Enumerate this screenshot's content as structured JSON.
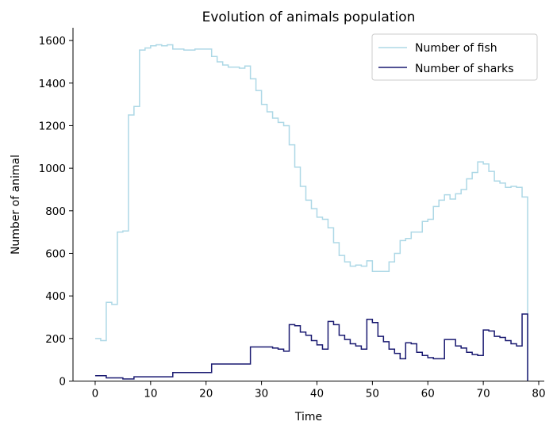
{
  "chart_data": {
    "type": "line",
    "drawstyle": "steps-post",
    "title": "Evolution of animals population",
    "xlabel": "Time",
    "ylabel": "Number of animal",
    "xlim": [
      -4,
      81
    ],
    "ylim": [
      0,
      1660
    ],
    "xticks": [
      0,
      10,
      20,
      30,
      40,
      50,
      60,
      70,
      80
    ],
    "yticks": [
      0,
      200,
      400,
      600,
      800,
      1000,
      1200,
      1400,
      1600
    ],
    "grid": false,
    "legend": "top-right",
    "series": [
      {
        "name": "Number of fish",
        "color": "#add8e6",
        "x": [
          0,
          1,
          2,
          3,
          4,
          5,
          6,
          7,
          8,
          9,
          10,
          11,
          12,
          13,
          14,
          15,
          16,
          17,
          18,
          19,
          20,
          21,
          22,
          23,
          24,
          25,
          26,
          27,
          28,
          29,
          30,
          31,
          32,
          33,
          34,
          35,
          36,
          37,
          38,
          39,
          40,
          41,
          42,
          43,
          44,
          45,
          46,
          47,
          48,
          49,
          50,
          51,
          52,
          53,
          54,
          55,
          56,
          57,
          58,
          59,
          60,
          61,
          62,
          63,
          64,
          65,
          66,
          67,
          68,
          69,
          70,
          71,
          72,
          73,
          74,
          75,
          76,
          77,
          78
        ],
        "values": [
          200,
          190,
          370,
          360,
          700,
          705,
          1250,
          1290,
          1555,
          1565,
          1575,
          1580,
          1575,
          1580,
          1560,
          1560,
          1555,
          1555,
          1560,
          1560,
          1560,
          1525,
          1500,
          1485,
          1475,
          1475,
          1470,
          1480,
          1420,
          1365,
          1300,
          1265,
          1235,
          1215,
          1200,
          1110,
          1005,
          915,
          850,
          810,
          770,
          760,
          720,
          650,
          590,
          560,
          540,
          545,
          540,
          565,
          515,
          515,
          515,
          560,
          600,
          660,
          670,
          700,
          700,
          750,
          760,
          820,
          850,
          875,
          855,
          880,
          900,
          950,
          980,
          1030,
          1020,
          985,
          940,
          930,
          910,
          915,
          910,
          865,
          0
        ]
      },
      {
        "name": "Number of sharks",
        "color": "#191970",
        "x": [
          0,
          1,
          2,
          3,
          4,
          5,
          6,
          7,
          8,
          9,
          10,
          11,
          12,
          13,
          14,
          15,
          16,
          17,
          18,
          19,
          20,
          21,
          22,
          23,
          24,
          25,
          26,
          27,
          28,
          29,
          30,
          31,
          32,
          33,
          34,
          35,
          36,
          37,
          38,
          39,
          40,
          41,
          42,
          43,
          44,
          45,
          46,
          47,
          48,
          49,
          50,
          51,
          52,
          53,
          54,
          55,
          56,
          57,
          58,
          59,
          60,
          61,
          62,
          63,
          64,
          65,
          66,
          67,
          68,
          69,
          70,
          71,
          72,
          73,
          74,
          75,
          76,
          77,
          78
        ],
        "values": [
          25,
          25,
          15,
          15,
          15,
          10,
          10,
          20,
          20,
          20,
          20,
          20,
          20,
          20,
          40,
          40,
          40,
          40,
          40,
          40,
          40,
          80,
          80,
          80,
          80,
          80,
          80,
          80,
          160,
          160,
          160,
          160,
          155,
          150,
          140,
          265,
          260,
          230,
          215,
          190,
          170,
          150,
          280,
          265,
          215,
          195,
          175,
          165,
          150,
          290,
          275,
          210,
          185,
          150,
          130,
          105,
          180,
          175,
          135,
          120,
          110,
          105,
          105,
          195,
          195,
          165,
          155,
          135,
          125,
          120,
          240,
          235,
          210,
          205,
          190,
          175,
          165,
          315,
          0
        ]
      }
    ]
  }
}
